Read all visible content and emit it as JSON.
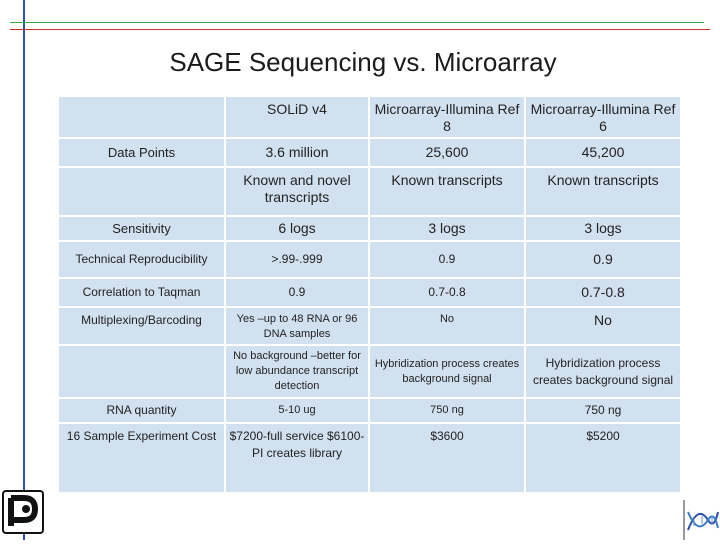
{
  "title": "SAGE Sequencing vs. Microarray",
  "columns": [
    "",
    "SOLiD v4",
    "Microarray-Illumina Ref 8",
    "Microarray-Illumina Ref 6"
  ],
  "rows": [
    {
      "label": "Data Points",
      "cells": [
        "3.6 million",
        "25,600",
        "45,200"
      ]
    },
    {
      "label": "",
      "cells": [
        "Known and novel transcripts",
        "Known transcripts",
        "Known transcripts"
      ]
    },
    {
      "label": "Sensitivity",
      "cells": [
        "6 logs",
        "3 logs",
        "3 logs"
      ]
    },
    {
      "label": "Technical Reproducibility",
      "cells": [
        ">.99-.999",
        "0.9",
        "0.9"
      ]
    },
    {
      "label": "Correlation to Taqman",
      "cells": [
        "0.9",
        "0.7-0.8",
        "0.7-0.8"
      ]
    },
    {
      "label": "Multiplexing/Barcoding",
      "cells": [
        "Yes –up to 48 RNA or 96 DNA samples",
        "No",
        "No"
      ]
    },
    {
      "label": "",
      "cells": [
        "No background –better for low abundance transcript detection",
        "Hybridization process creates background signal",
        "Hybridization process creates background signal"
      ]
    },
    {
      "label": "RNA quantity",
      "cells": [
        "5-10 ug",
        "750 ng",
        "750 ng"
      ]
    },
    {
      "label": "16 Sample Experiment Cost",
      "cells": [
        "$7200-full service $6100-PI creates library",
        "$3600",
        "$5200"
      ]
    }
  ],
  "icons": {
    "left_logo": "institution-logo-icon",
    "right_logo": "dna-helix-logo-icon"
  },
  "colors": {
    "cell_bg": "#d2e1f0",
    "rule_green": "#3aa84a",
    "rule_red": "#d03030",
    "rule_blue": "#2b4fa8"
  }
}
